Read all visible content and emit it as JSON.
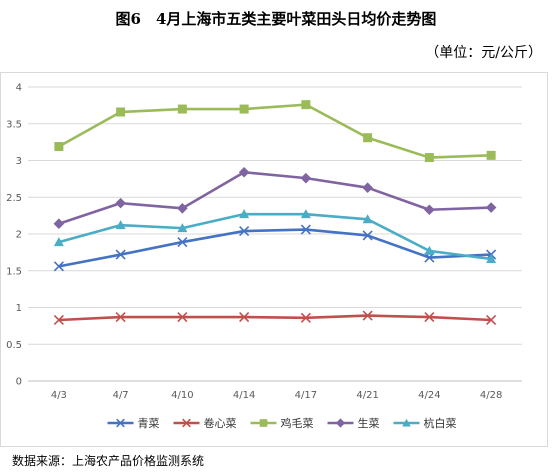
{
  "header": {
    "title": "图6　4月上海市五类主要叶菜田头日均价走势图",
    "unit": "（单位：元/公斤）"
  },
  "footer": {
    "source": "数据来源：上海农产品价格监测系统"
  },
  "chart_data": {
    "type": "line",
    "title": "图6　4月上海市五类主要叶菜田头日均价走势图",
    "xlabel": "",
    "ylabel": "",
    "categories": [
      "4/3",
      "4/7",
      "4/10",
      "4/14",
      "4/17",
      "4/21",
      "4/24",
      "4/28"
    ],
    "ylim": [
      0,
      4
    ],
    "yticks": [
      0,
      0.5,
      1,
      1.5,
      2,
      2.5,
      3,
      3.5,
      4
    ],
    "grid": true,
    "legend_position": "bottom",
    "series": [
      {
        "name": "青菜",
        "color": "#4472c4",
        "marker": "x",
        "values": [
          1.56,
          1.72,
          1.89,
          2.04,
          2.06,
          1.98,
          1.68,
          1.72
        ]
      },
      {
        "name": "卷心菜",
        "color": "#c0504d",
        "marker": "x",
        "values": [
          0.83,
          0.87,
          0.87,
          0.87,
          0.86,
          0.89,
          0.87,
          0.83
        ]
      },
      {
        "name": "鸡毛菜",
        "color": "#9bbb59",
        "marker": "square",
        "values": [
          3.19,
          3.66,
          3.7,
          3.7,
          3.76,
          3.31,
          3.04,
          3.07
        ]
      },
      {
        "name": "生菜",
        "color": "#8064a2",
        "marker": "diamond",
        "values": [
          2.14,
          2.42,
          2.35,
          2.84,
          2.76,
          2.63,
          2.33,
          2.36
        ]
      },
      {
        "name": "杭白菜",
        "color": "#4bacc6",
        "marker": "triangle",
        "values": [
          1.89,
          2.12,
          2.08,
          2.27,
          2.27,
          2.2,
          1.77,
          1.66
        ]
      }
    ]
  }
}
